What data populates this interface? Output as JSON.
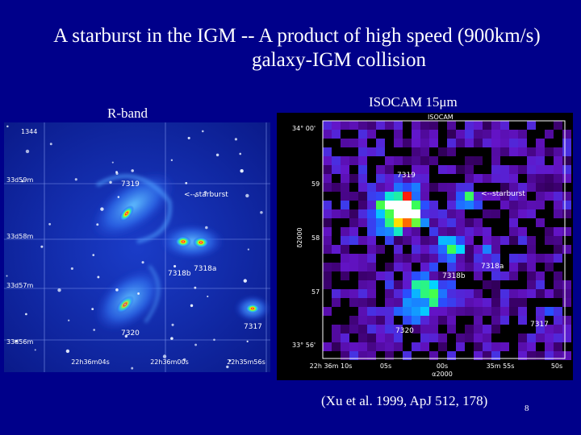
{
  "title": {
    "line1": "A starburst in the IGM -- A product of high speed (900km/s)",
    "line2": "galaxy-IGM collision"
  },
  "left_panel": {
    "label": "R-band",
    "corner": "1344",
    "y_labels": [
      "33d59m",
      "33d58m",
      "33d57m",
      "33d56m"
    ],
    "x_labels": [
      "22h36m04s",
      "22h36m00s",
      "22h35m56s"
    ],
    "objects": [
      "7319",
      "<--starburst",
      "7318a",
      "7318b",
      "7320",
      "7317"
    ]
  },
  "right_panel": {
    "label": "ISOCAM 15μm",
    "header": "ISOCAM",
    "y_labels": [
      "34° 00'",
      "59",
      "58",
      "57",
      "33° 56'"
    ],
    "y_axis": "δ2000",
    "x_labels": [
      "22h 36m 10s",
      "05s",
      "00s",
      "35m 55s",
      "50s"
    ],
    "x_axis": "α2000",
    "objects": [
      "7319",
      "<--starburst",
      "7318a",
      "7318b",
      "7320",
      "7317"
    ]
  },
  "citation": "(Xu et al. 1999, ApJ 512, 178)",
  "page_number": "8"
}
